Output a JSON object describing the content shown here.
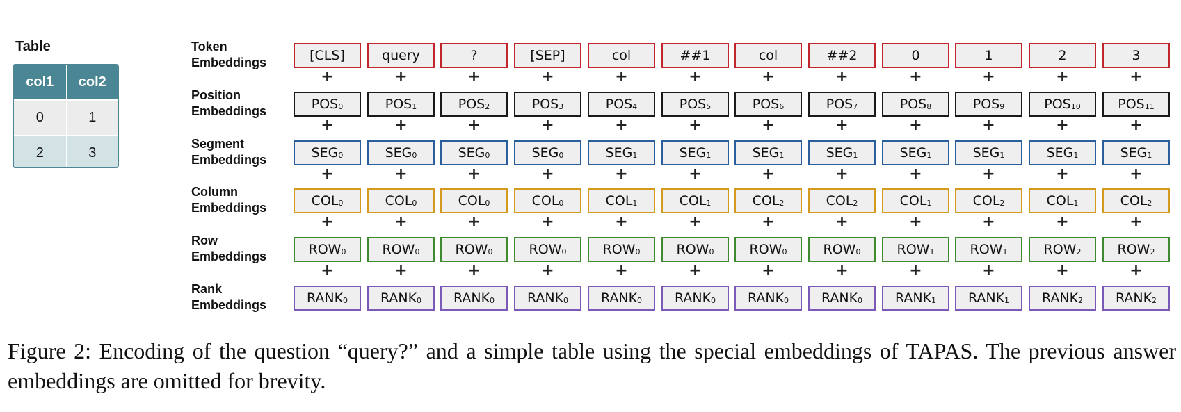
{
  "table": {
    "title": "Table",
    "headers": [
      "col1",
      "col2"
    ],
    "rows": [
      [
        "0",
        "1"
      ],
      [
        "2",
        "3"
      ]
    ]
  },
  "plus_symbol": "+",
  "embedding_rows": [
    {
      "key": "token",
      "label": [
        "Token",
        "Embeddings"
      ],
      "color": "#c0262c",
      "cells": [
        {
          "t": "[CLS]",
          "s": ""
        },
        {
          "t": "query",
          "s": ""
        },
        {
          "t": "?",
          "s": ""
        },
        {
          "t": "[SEP]",
          "s": ""
        },
        {
          "t": "col",
          "s": ""
        },
        {
          "t": "##1",
          "s": ""
        },
        {
          "t": "col",
          "s": ""
        },
        {
          "t": "##2",
          "s": ""
        },
        {
          "t": "0",
          "s": ""
        },
        {
          "t": "1",
          "s": ""
        },
        {
          "t": "2",
          "s": ""
        },
        {
          "t": "3",
          "s": ""
        }
      ]
    },
    {
      "key": "position",
      "label": [
        "Position",
        "Embeddings"
      ],
      "color": "#1a1a1a",
      "cells": [
        {
          "t": "POS",
          "s": "0"
        },
        {
          "t": "POS",
          "s": "1"
        },
        {
          "t": "POS",
          "s": "2"
        },
        {
          "t": "POS",
          "s": "3"
        },
        {
          "t": "POS",
          "s": "4"
        },
        {
          "t": "POS",
          "s": "5"
        },
        {
          "t": "POS",
          "s": "6"
        },
        {
          "t": "POS",
          "s": "7"
        },
        {
          "t": "POS",
          "s": "8"
        },
        {
          "t": "POS",
          "s": "9"
        },
        {
          "t": "POS",
          "s": "10"
        },
        {
          "t": "POS",
          "s": "11"
        }
      ]
    },
    {
      "key": "segment",
      "label": [
        "Segment",
        "Embeddings"
      ],
      "color": "#2a5f9e",
      "cells": [
        {
          "t": "SEG",
          "s": "0"
        },
        {
          "t": "SEG",
          "s": "0"
        },
        {
          "t": "SEG",
          "s": "0"
        },
        {
          "t": "SEG",
          "s": "0"
        },
        {
          "t": "SEG",
          "s": "1"
        },
        {
          "t": "SEG",
          "s": "1"
        },
        {
          "t": "SEG",
          "s": "1"
        },
        {
          "t": "SEG",
          "s": "1"
        },
        {
          "t": "SEG",
          "s": "1"
        },
        {
          "t": "SEG",
          "s": "1"
        },
        {
          "t": "SEG",
          "s": "1"
        },
        {
          "t": "SEG",
          "s": "1"
        }
      ]
    },
    {
      "key": "column",
      "label": [
        "Column",
        "Embeddings"
      ],
      "color": "#d39a1e",
      "cells": [
        {
          "t": "COL",
          "s": "0"
        },
        {
          "t": "COL",
          "s": "0"
        },
        {
          "t": "COL",
          "s": "0"
        },
        {
          "t": "COL",
          "s": "0"
        },
        {
          "t": "COL",
          "s": "1"
        },
        {
          "t": "COL",
          "s": "1"
        },
        {
          "t": "COL",
          "s": "2"
        },
        {
          "t": "COL",
          "s": "2"
        },
        {
          "t": "COL",
          "s": "1"
        },
        {
          "t": "COL",
          "s": "2"
        },
        {
          "t": "COL",
          "s": "1"
        },
        {
          "t": "COL",
          "s": "2"
        }
      ]
    },
    {
      "key": "row",
      "label": [
        "Row",
        "Embeddings"
      ],
      "color": "#3e8a2e",
      "cells": [
        {
          "t": "ROW",
          "s": "0"
        },
        {
          "t": "ROW",
          "s": "0"
        },
        {
          "t": "ROW",
          "s": "0"
        },
        {
          "t": "ROW",
          "s": "0"
        },
        {
          "t": "ROW",
          "s": "0"
        },
        {
          "t": "ROW",
          "s": "0"
        },
        {
          "t": "ROW",
          "s": "0"
        },
        {
          "t": "ROW",
          "s": "0"
        },
        {
          "t": "ROW",
          "s": "1"
        },
        {
          "t": "ROW",
          "s": "1"
        },
        {
          "t": "ROW",
          "s": "2"
        },
        {
          "t": "ROW",
          "s": "2"
        }
      ]
    },
    {
      "key": "rank",
      "label": [
        "Rank",
        "Embeddings"
      ],
      "color": "#7a59b8",
      "cells": [
        {
          "t": "RANK",
          "s": "0"
        },
        {
          "t": "RANK",
          "s": "0"
        },
        {
          "t": "RANK",
          "s": "0"
        },
        {
          "t": "RANK",
          "s": "0"
        },
        {
          "t": "RANK",
          "s": "0"
        },
        {
          "t": "RANK",
          "s": "0"
        },
        {
          "t": "RANK",
          "s": "0"
        },
        {
          "t": "RANK",
          "s": "0"
        },
        {
          "t": "RANK",
          "s": "1"
        },
        {
          "t": "RANK",
          "s": "1"
        },
        {
          "t": "RANK",
          "s": "2"
        },
        {
          "t": "RANK",
          "s": "2"
        }
      ]
    }
  ],
  "caption": "Figure 2: Encoding of the question “query?” and a simple table using the special embeddings of TAPAS. The previous answer embeddings are omitted for brevity."
}
